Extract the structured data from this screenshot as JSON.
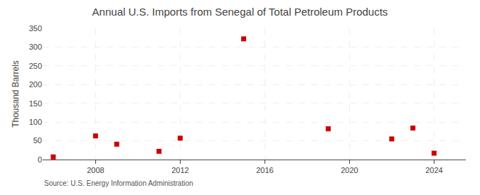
{
  "chart_data": {
    "type": "scatter",
    "title": "Annual U.S. Imports from Senegal of Total Petroleum Products",
    "ylabel": "Thousand Barrels",
    "annotations": [
      "Source: U.S. Energy Information Administration"
    ],
    "x": [
      2006,
      2008,
      2009,
      2011,
      2012,
      2015,
      2019,
      2022,
      2023,
      2024
    ],
    "values": [
      7,
      63,
      41,
      22,
      57,
      322,
      82,
      55,
      84,
      17
    ],
    "color": "#cc0000",
    "marker": "square",
    "xlim": [
      2005.5,
      2025.5
    ],
    "xticks": [
      2008,
      2012,
      2016,
      2020,
      2024
    ],
    "ylim": [
      0,
      350
    ],
    "yticks": [
      0,
      50,
      100,
      150,
      200,
      250,
      300,
      350
    ],
    "grid": true
  }
}
